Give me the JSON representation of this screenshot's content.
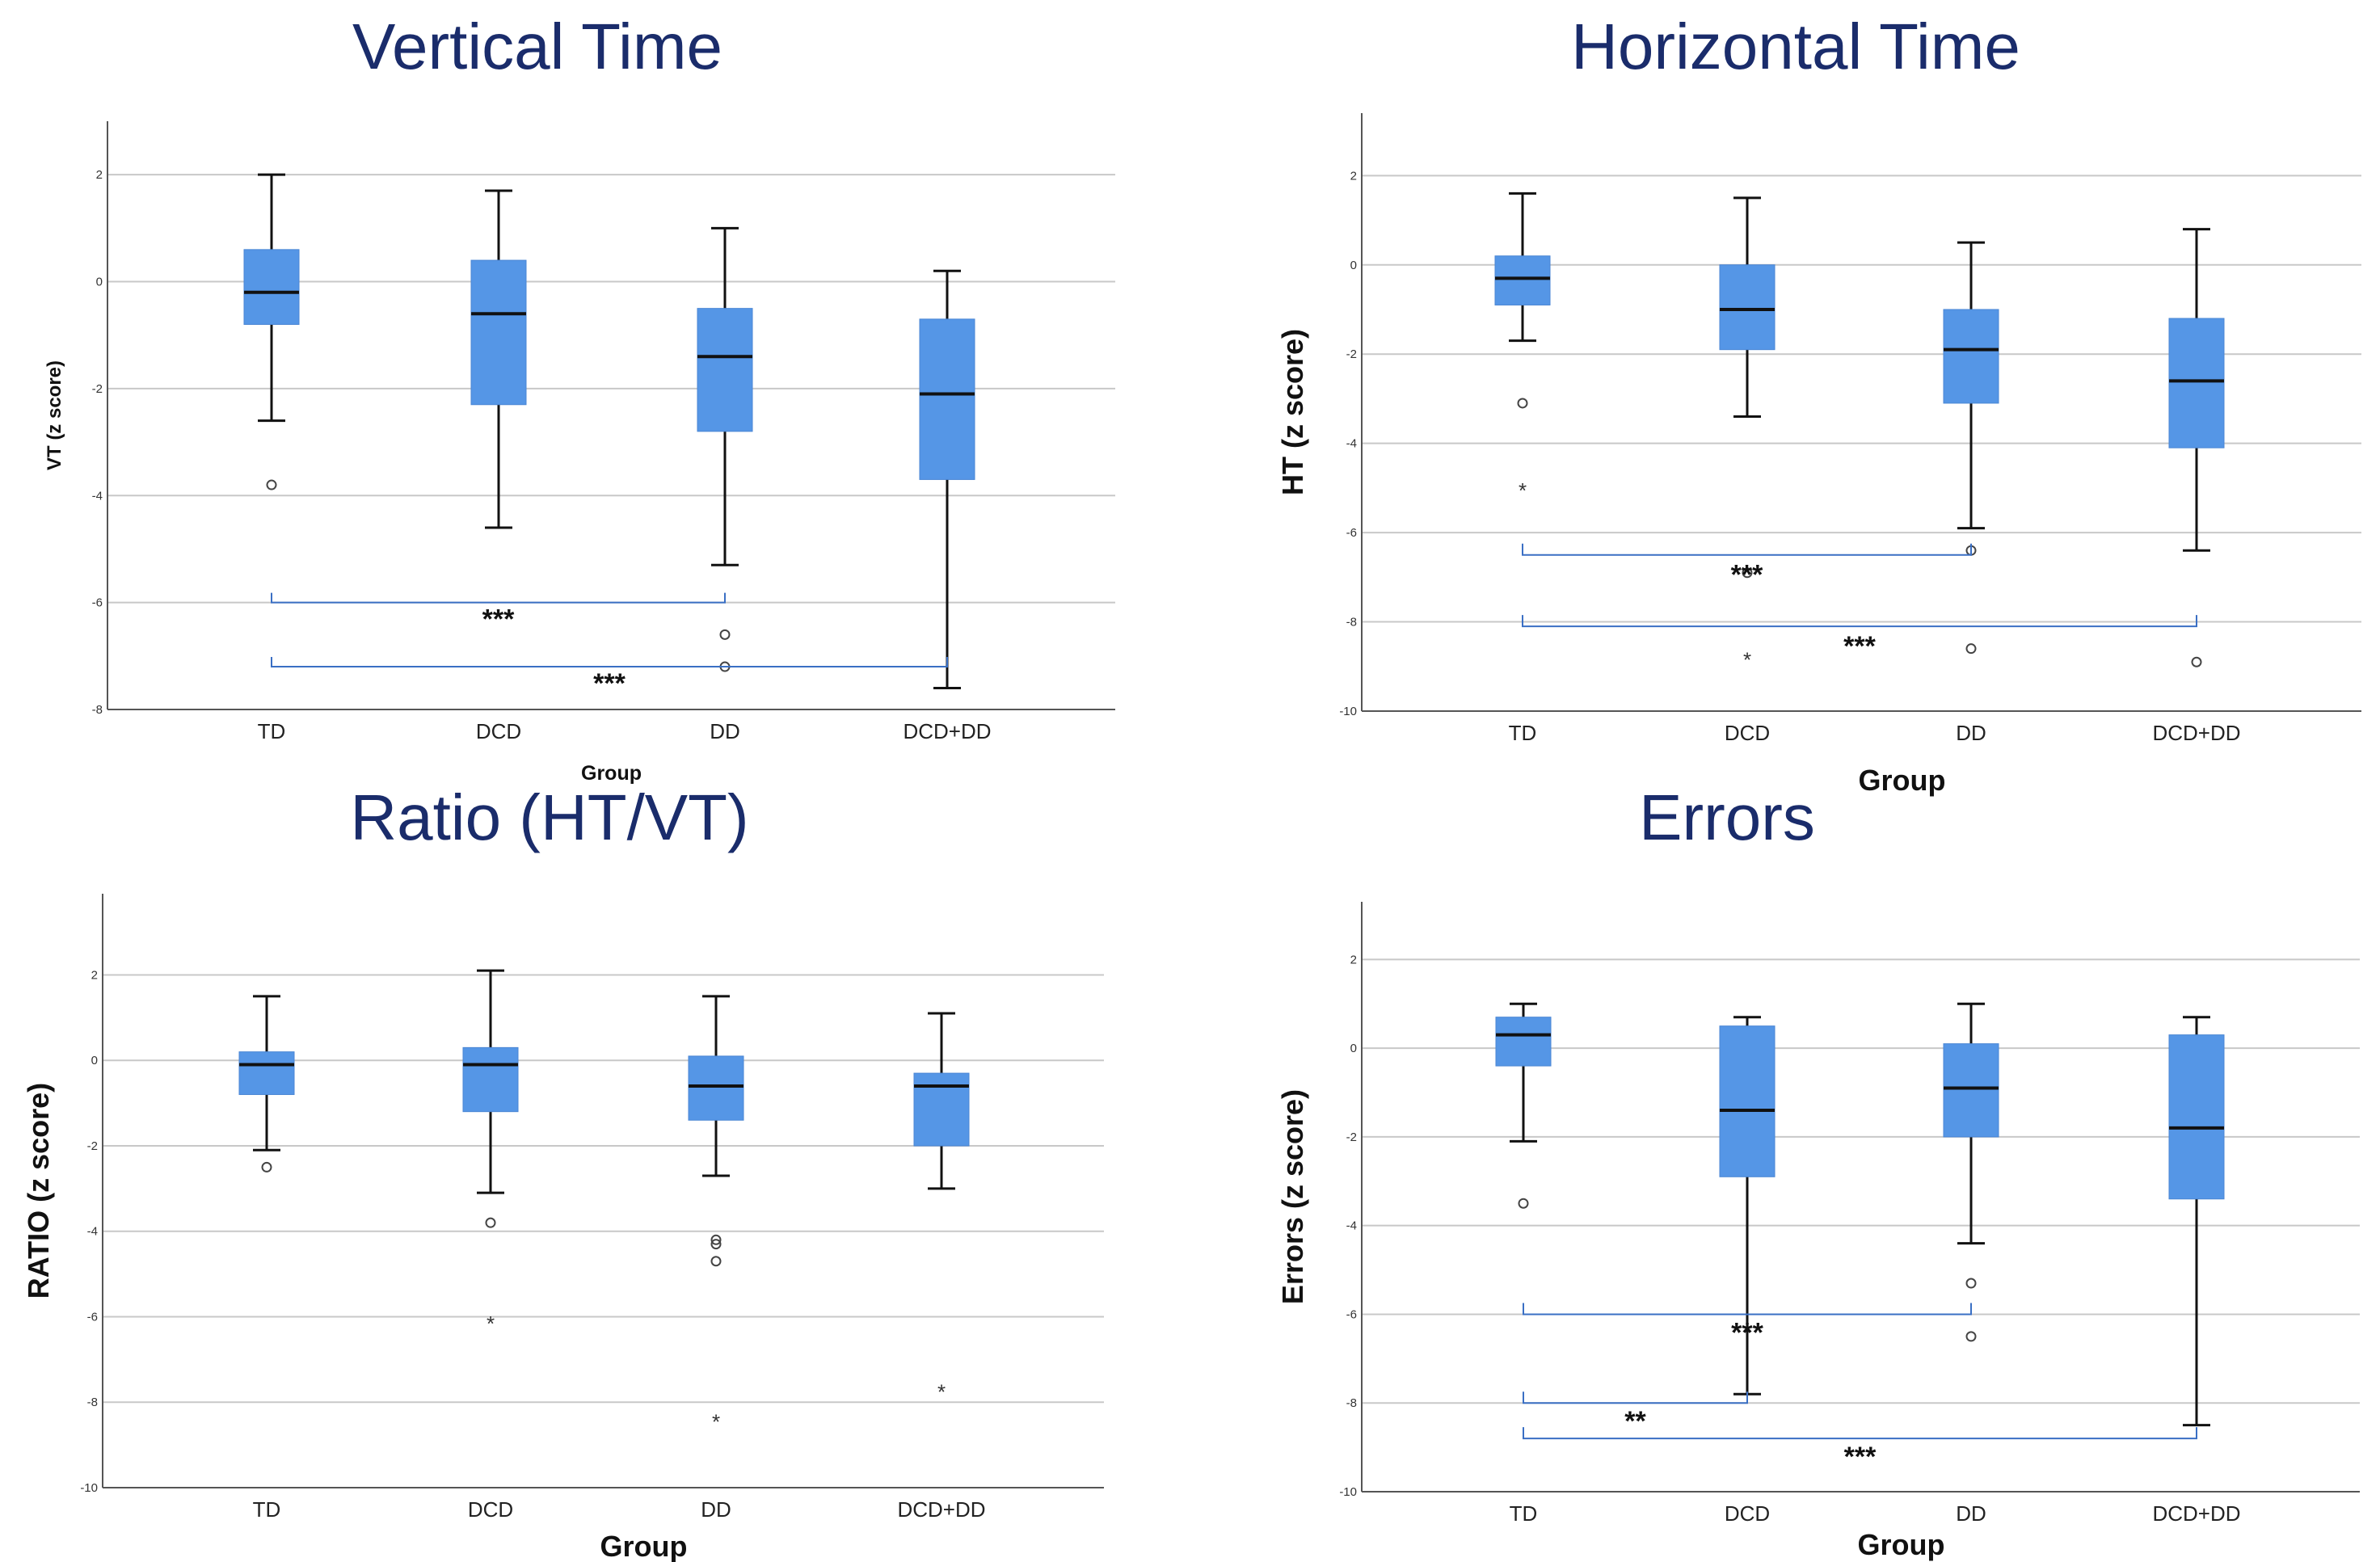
{
  "figures": [
    {
      "title": "Vertical Time"
    },
    {
      "title": "Horizontal Time"
    },
    {
      "title": "Ratio (HT/VT)"
    },
    {
      "title": "Errors"
    }
  ],
  "colors": {
    "box": "#5596e6",
    "bracket": "#3a6fc4",
    "grid": "#c8c8c8",
    "title": "#1a2c6b"
  },
  "chart_data": [
    {
      "type": "box",
      "title": "Vertical Time",
      "xlabel": "Group",
      "ylabel": "VT (z score)",
      "categories": [
        "TD",
        "DCD",
        "DD",
        "DCD+DD"
      ],
      "ylim": [
        -8,
        3
      ],
      "yticks": [
        2,
        0,
        -2,
        -4,
        -6,
        -8
      ],
      "grid": true,
      "boxes": [
        {
          "group": "TD",
          "whisker_low": -2.6,
          "q1": -0.8,
          "median": -0.2,
          "q3": 0.6,
          "whisker_high": 2.0,
          "outliers": [
            -3.8
          ],
          "extremes": []
        },
        {
          "group": "DCD",
          "whisker_low": -4.6,
          "q1": -2.3,
          "median": -0.6,
          "q3": 0.4,
          "whisker_high": 1.7,
          "outliers": [],
          "extremes": []
        },
        {
          "group": "DD",
          "whisker_low": -5.3,
          "q1": -2.8,
          "median": -1.4,
          "q3": -0.5,
          "whisker_high": 1.0,
          "outliers": [
            -6.6,
            -7.2
          ],
          "extremes": []
        },
        {
          "group": "DCD+DD",
          "whisker_low": -7.6,
          "q1": -3.7,
          "median": -2.1,
          "q3": -0.7,
          "whisker_high": 0.2,
          "outliers": [],
          "extremes": []
        }
      ],
      "brackets": [
        {
          "from": "TD",
          "to": "DD",
          "y": -6.0,
          "label": "***"
        },
        {
          "from": "TD",
          "to": "DCD+DD",
          "y": -7.2,
          "label": "***"
        }
      ]
    },
    {
      "type": "box",
      "title": "Horizontal Time",
      "xlabel": "Group",
      "ylabel": "HT (z score)",
      "categories": [
        "TD",
        "DCD",
        "DD",
        "DCD+DD"
      ],
      "ylim": [
        -10,
        3.4
      ],
      "yticks": [
        2,
        0,
        -2,
        -4,
        -6,
        -8,
        -10
      ],
      "grid": true,
      "boxes": [
        {
          "group": "TD",
          "whisker_low": -1.7,
          "q1": -0.9,
          "median": -0.3,
          "q3": 0.2,
          "whisker_high": 1.6,
          "outliers": [
            -3.1
          ],
          "extremes": [
            -5.0
          ]
        },
        {
          "group": "DCD",
          "whisker_low": -3.4,
          "q1": -1.9,
          "median": -1.0,
          "q3": 0.0,
          "whisker_high": 1.5,
          "outliers": [
            -6.9
          ],
          "extremes": [
            -8.8
          ]
        },
        {
          "group": "DD",
          "whisker_low": -5.9,
          "q1": -3.1,
          "median": -1.9,
          "q3": -1.0,
          "whisker_high": 0.5,
          "outliers": [
            -6.4,
            -8.6
          ],
          "extremes": []
        },
        {
          "group": "DCD+DD",
          "whisker_low": -6.4,
          "q1": -4.1,
          "median": -2.6,
          "q3": -1.2,
          "whisker_high": 0.8,
          "outliers": [
            -8.9
          ],
          "extremes": []
        }
      ],
      "brackets": [
        {
          "from": "TD",
          "to": "DD",
          "y": -6.5,
          "label": "***"
        },
        {
          "from": "TD",
          "to": "DCD+DD",
          "y": -8.1,
          "label": "***"
        }
      ]
    },
    {
      "type": "box",
      "title": "Ratio (HT/VT)",
      "xlabel": "Group",
      "ylabel": "RATIO (z score)",
      "categories": [
        "TD",
        "DCD",
        "DD",
        "DCD+DD"
      ],
      "ylim": [
        -10,
        3.9
      ],
      "yticks": [
        2,
        0,
        -2,
        -4,
        -6,
        -8,
        -10
      ],
      "grid": true,
      "boxes": [
        {
          "group": "TD",
          "whisker_low": -2.1,
          "q1": -0.8,
          "median": -0.1,
          "q3": 0.2,
          "whisker_high": 1.5,
          "outliers": [
            -2.5
          ],
          "extremes": []
        },
        {
          "group": "DCD",
          "whisker_low": -3.1,
          "q1": -1.2,
          "median": -0.1,
          "q3": 0.3,
          "whisker_high": 2.1,
          "outliers": [
            -3.8
          ],
          "extremes": [
            -6.1
          ]
        },
        {
          "group": "DD",
          "whisker_low": -2.7,
          "q1": -1.4,
          "median": -0.6,
          "q3": 0.1,
          "whisker_high": 1.5,
          "outliers": [
            -4.2,
            -4.3,
            -4.7
          ],
          "extremes": [
            -8.4
          ]
        },
        {
          "group": "DCD+DD",
          "whisker_low": -3.0,
          "q1": -2.0,
          "median": -0.6,
          "q3": -0.3,
          "whisker_high": 1.1,
          "outliers": [],
          "extremes": [
            -7.7
          ]
        }
      ],
      "brackets": []
    },
    {
      "type": "box",
      "title": "Errors",
      "xlabel": "Group",
      "ylabel": "Errors (z score)",
      "categories": [
        "TD",
        "DCD",
        "DD",
        "DCD+DD"
      ],
      "ylim": [
        -10,
        3.3
      ],
      "yticks": [
        2,
        0,
        -2,
        -4,
        -6,
        -8,
        -10
      ],
      "grid": true,
      "boxes": [
        {
          "group": "TD",
          "whisker_low": -2.1,
          "q1": -0.4,
          "median": 0.3,
          "q3": 0.7,
          "whisker_high": 1.0,
          "outliers": [
            -3.5
          ],
          "extremes": []
        },
        {
          "group": "DCD",
          "whisker_low": -7.8,
          "q1": -2.9,
          "median": -1.4,
          "q3": 0.5,
          "whisker_high": 0.7,
          "outliers": [],
          "extremes": []
        },
        {
          "group": "DD",
          "whisker_low": -4.4,
          "q1": -2.0,
          "median": -0.9,
          "q3": 0.1,
          "whisker_high": 1.0,
          "outliers": [
            -5.3,
            -6.5
          ],
          "extremes": []
        },
        {
          "group": "DCD+DD",
          "whisker_low": -8.5,
          "q1": -3.4,
          "median": -1.8,
          "q3": 0.3,
          "whisker_high": 0.7,
          "outliers": [],
          "extremes": []
        }
      ],
      "brackets": [
        {
          "from": "TD",
          "to": "DD",
          "y": -6.0,
          "label": "***"
        },
        {
          "from": "TD",
          "to": "DCD",
          "y": -8.0,
          "label": "**"
        },
        {
          "from": "TD",
          "to": "DCD+DD",
          "y": -8.8,
          "label": "***"
        }
      ]
    }
  ]
}
